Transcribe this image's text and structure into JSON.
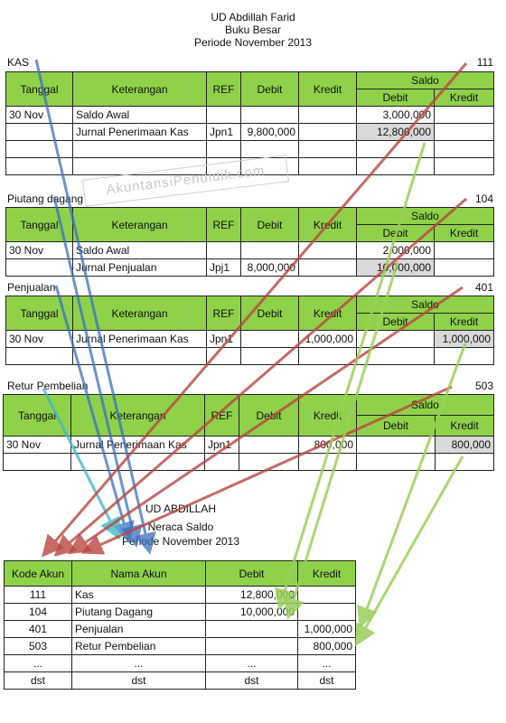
{
  "header": {
    "company": "UD Abdillah Farid",
    "doc": "Buku Besar",
    "period": "Periode November 2013"
  },
  "columns": {
    "tanggal": "Tanggal",
    "keterangan": "Keterangan",
    "ref": "REF",
    "debit": "Debit",
    "kredit": "Kredit",
    "saldo": "Saldo"
  },
  "ledgers": [
    {
      "name": "KAS",
      "no": "111",
      "rows": [
        [
          "30 Nov",
          "Saldo Awal",
          "",
          "",
          "",
          "3,000,000",
          ""
        ],
        [
          "",
          "Jurnal Penerimaan Kas",
          "Jpn1",
          "9,800,000",
          "",
          "12,800,000",
          ""
        ],
        [
          "",
          "",
          "",
          "",
          "",
          "",
          ""
        ],
        [
          "",
          "",
          "",
          "",
          "",
          "",
          ""
        ]
      ]
    },
    {
      "name": "Piutang dagang",
      "no": "104",
      "rows": [
        [
          "30 Nov",
          "Saldo Awal",
          "",
          "",
          "",
          "2,000,000",
          ""
        ],
        [
          "",
          "Jurnal Penjualan",
          "Jpj1",
          "8,000,000",
          "",
          "10,000,000",
          ""
        ]
      ]
    },
    {
      "name": "Penjualan",
      "no": "401",
      "rows": [
        [
          "30 Nov",
          "Jurnal Penerimaan Kas",
          "Jpn1",
          "",
          "1,000,000",
          "",
          "1,000,000"
        ],
        [
          "",
          "",
          "",
          "",
          "",
          "",
          ""
        ]
      ]
    },
    {
      "name": "Retur Pembelian",
      "no": "503",
      "rows": [
        [
          "30 Nov",
          "Jurnal Penerimaan Kas",
          "Jpn1",
          "",
          "800,000",
          "",
          "800,000"
        ],
        [
          "",
          "",
          "",
          "",
          "",
          "",
          ""
        ]
      ]
    }
  ],
  "trial": {
    "company": "UD ABDILLAH",
    "doc": "Neraca Saldo",
    "period": "Periode November 2013",
    "headers": [
      "Kode Akun",
      "Nama Akun",
      "Debit",
      "Kredit"
    ],
    "rows": [
      [
        "111",
        "Kas",
        "12,800,000",
        ""
      ],
      [
        "104",
        "Piutang Dagang",
        "10,000,000",
        ""
      ],
      [
        "401",
        "Penjualan",
        "",
        "1,000,000"
      ],
      [
        "503",
        "Retur Pembelian",
        "",
        "800,000"
      ],
      [
        "...",
        "...",
        "...",
        "..."
      ],
      [
        "dst",
        "dst",
        "dst",
        "dst"
      ]
    ]
  },
  "watermark": "AkuntansiPendidik.com",
  "colors": {
    "header_green": "#8fd24a",
    "arrow_blue": "#3a6fc0",
    "arrow_red": "#b9473f",
    "arrow_green": "#9bcf5a",
    "arrow_cyan": "#40b8c8"
  }
}
